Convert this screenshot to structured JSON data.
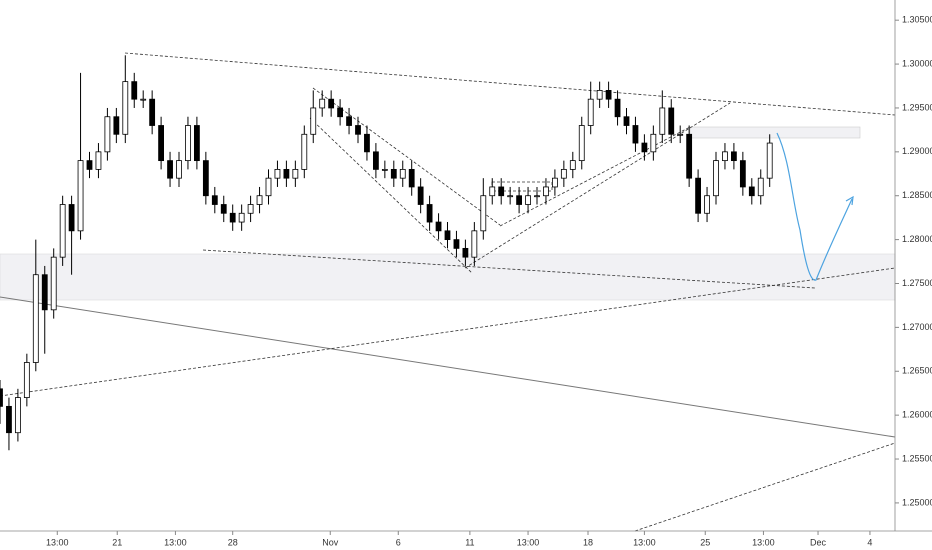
{
  "chart_data": {
    "type": "candlestick",
    "x": [
      0,
      1,
      2,
      3,
      4,
      5,
      6,
      7,
      8,
      9,
      10,
      11,
      12,
      13,
      14,
      15,
      16,
      17,
      18,
      19,
      20,
      21,
      22,
      23,
      24,
      25,
      26,
      27,
      28,
      29,
      30,
      31,
      32,
      33,
      34,
      35,
      36,
      37,
      38,
      39,
      40,
      41,
      42,
      43,
      44,
      45,
      46,
      47,
      48,
      49,
      50,
      51,
      52,
      53,
      54,
      55,
      56,
      57,
      58,
      59,
      60,
      61,
      62,
      63,
      64,
      65,
      66,
      67,
      68,
      69,
      70,
      71,
      72,
      73,
      74,
      75,
      76,
      77,
      78,
      79,
      80,
      81,
      82,
      83,
      84,
      85,
      86
    ],
    "open": [
      1.263,
      1.261,
      1.258,
      1.262,
      1.266,
      1.276,
      1.272,
      1.278,
      1.284,
      1.281,
      1.289,
      1.288,
      1.29,
      1.294,
      1.292,
      1.298,
      1.296,
      1.296,
      1.293,
      1.289,
      1.287,
      1.289,
      1.293,
      1.289,
      1.285,
      1.284,
      1.283,
      1.282,
      1.283,
      1.284,
      1.285,
      1.287,
      1.288,
      1.287,
      1.288,
      1.292,
      1.295,
      1.296,
      1.295,
      1.294,
      1.293,
      1.292,
      1.29,
      1.288,
      1.288,
      1.287,
      1.288,
      1.286,
      1.284,
      1.282,
      1.281,
      1.28,
      1.279,
      1.278,
      1.281,
      1.285,
      1.286,
      1.285,
      1.285,
      1.284,
      1.285,
      1.285,
      1.286,
      1.287,
      1.288,
      1.289,
      1.293,
      1.296,
      1.297,
      1.296,
      1.294,
      1.293,
      1.291,
      1.29,
      1.292,
      1.295,
      1.292,
      1.292,
      1.287,
      1.283,
      1.285,
      1.289,
      1.29,
      1.289,
      1.286,
      1.285,
      1.287
    ],
    "high": [
      1.264,
      1.262,
      1.263,
      1.267,
      1.28,
      1.277,
      1.279,
      1.285,
      1.285,
      1.299,
      1.29,
      1.291,
      1.295,
      1.295,
      1.301,
      1.299,
      1.297,
      1.297,
      1.294,
      1.29,
      1.29,
      1.294,
      1.294,
      1.29,
      1.286,
      1.285,
      1.284,
      1.284,
      1.285,
      1.286,
      1.288,
      1.289,
      1.289,
      1.289,
      1.293,
      1.297,
      1.297,
      1.297,
      1.296,
      1.295,
      1.294,
      1.293,
      1.291,
      1.289,
      1.289,
      1.289,
      1.289,
      1.287,
      1.285,
      1.283,
      1.282,
      1.281,
      1.28,
      1.282,
      1.287,
      1.287,
      1.287,
      1.286,
      1.286,
      1.286,
      1.286,
      1.287,
      1.288,
      1.289,
      1.29,
      1.294,
      1.298,
      1.298,
      1.298,
      1.297,
      1.295,
      1.294,
      1.292,
      1.293,
      1.297,
      1.296,
      1.293,
      1.293,
      1.288,
      1.286,
      1.29,
      1.291,
      1.291,
      1.29,
      1.287,
      1.288,
      1.292
    ],
    "low": [
      1.259,
      1.256,
      1.257,
      1.261,
      1.265,
      1.267,
      1.271,
      1.277,
      1.276,
      1.28,
      1.287,
      1.287,
      1.289,
      1.291,
      1.291,
      1.295,
      1.295,
      1.292,
      1.288,
      1.286,
      1.286,
      1.288,
      1.288,
      1.284,
      1.283,
      1.282,
      1.281,
      1.281,
      1.282,
      1.283,
      1.284,
      1.286,
      1.286,
      1.286,
      1.287,
      1.291,
      1.294,
      1.294,
      1.293,
      1.292,
      1.291,
      1.289,
      1.287,
      1.287,
      1.286,
      1.286,
      1.285,
      1.283,
      1.281,
      1.28,
      1.279,
      1.278,
      1.277,
      1.277,
      1.28,
      1.284,
      1.284,
      1.284,
      1.283,
      1.283,
      1.284,
      1.284,
      1.285,
      1.286,
      1.287,
      1.288,
      1.292,
      1.295,
      1.295,
      1.293,
      1.292,
      1.29,
      1.289,
      1.289,
      1.291,
      1.291,
      1.291,
      1.286,
      1.282,
      1.282,
      1.284,
      1.288,
      1.288,
      1.285,
      1.284,
      1.284,
      1.286
    ],
    "close": [
      1.261,
      1.258,
      1.262,
      1.266,
      1.276,
      1.272,
      1.278,
      1.284,
      1.281,
      1.289,
      1.288,
      1.29,
      1.294,
      1.292,
      1.298,
      1.296,
      1.296,
      1.293,
      1.289,
      1.287,
      1.289,
      1.293,
      1.289,
      1.285,
      1.284,
      1.283,
      1.282,
      1.283,
      1.284,
      1.285,
      1.287,
      1.288,
      1.287,
      1.288,
      1.292,
      1.295,
      1.296,
      1.295,
      1.294,
      1.293,
      1.292,
      1.29,
      1.288,
      1.288,
      1.287,
      1.288,
      1.286,
      1.284,
      1.282,
      1.281,
      1.28,
      1.279,
      1.278,
      1.281,
      1.285,
      1.286,
      1.285,
      1.285,
      1.284,
      1.285,
      1.285,
      1.286,
      1.287,
      1.288,
      1.289,
      1.293,
      1.296,
      1.297,
      1.296,
      1.294,
      1.293,
      1.291,
      1.29,
      1.292,
      1.295,
      1.292,
      1.292,
      1.287,
      1.283,
      1.285,
      1.289,
      1.29,
      1.289,
      1.286,
      1.285,
      1.287,
      1.291
    ],
    "up_color": "#ffffff",
    "down_color": "#000000",
    "xlim": [
      0,
      100
    ],
    "xticks": [
      {
        "value": 6.4,
        "label": "13:00"
      },
      {
        "value": 13.1,
        "label": "21"
      },
      {
        "value": 19.6,
        "label": "13:00"
      },
      {
        "value": 26,
        "label": "28"
      },
      {
        "value": 36.9,
        "label": "Nov"
      },
      {
        "value": 44.5,
        "label": "6"
      },
      {
        "value": 52.5,
        "label": "11"
      },
      {
        "value": 59,
        "label": "13:00"
      },
      {
        "value": 65.7,
        "label": "18"
      },
      {
        "value": 72,
        "label": "13:00"
      },
      {
        "value": 78.8,
        "label": "25"
      },
      {
        "value": 85.3,
        "label": "13:00"
      },
      {
        "value": 91.4,
        "label": "Dec"
      },
      {
        "value": 97.2,
        "label": "4"
      }
    ],
    "ylim": [
      1.2468,
      1.3073
    ],
    "yticks": [
      {
        "value": 1.305,
        "label": "1.30500"
      },
      {
        "value": 1.3,
        "label": "1.30000"
      },
      {
        "value": 1.295,
        "label": "1.29500"
      },
      {
        "value": 1.29,
        "label": "1.29000"
      },
      {
        "value": 1.285,
        "label": "1.28500"
      },
      {
        "value": 1.28,
        "label": "1.28000"
      },
      {
        "value": 1.275,
        "label": "1.27500"
      },
      {
        "value": 1.27,
        "label": "1.27000"
      },
      {
        "value": 1.265,
        "label": "1.26500"
      },
      {
        "value": 1.26,
        "label": "1.26000"
      },
      {
        "value": 1.255,
        "label": "1.25500"
      },
      {
        "value": 1.25,
        "label": "1.25000"
      }
    ]
  }
}
